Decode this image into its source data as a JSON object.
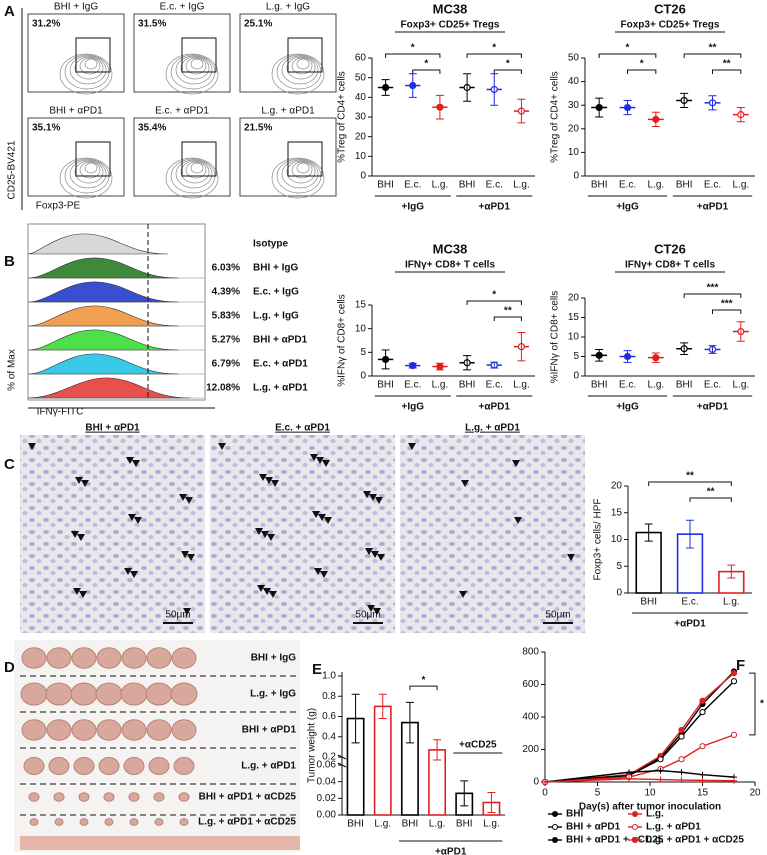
{
  "panel_letters": [
    "A",
    "B",
    "C",
    "D",
    "E",
    "F"
  ],
  "flow": {
    "plots": [
      {
        "label": "BHI + IgG",
        "percent": "31.2%"
      },
      {
        "label": "E.c. + IgG",
        "percent": "31.5%"
      },
      {
        "label": "L.g. + IgG",
        "percent": "25.1%"
      },
      {
        "label": "BHI + αPD1",
        "percent": "35.1%"
      },
      {
        "label": "E.c. + αPD1",
        "percent": "35.4%"
      },
      {
        "label": "L.g. + αPD1",
        "percent": "21.5%"
      }
    ],
    "y_axis": "CD25-BV421",
    "x_axis": "Foxp3-PE"
  },
  "histogram": {
    "isotype": "Isotype",
    "rows": [
      {
        "label": "BHI + IgG",
        "percent": "6.03%",
        "color": "#3f8a3a"
      },
      {
        "label": "E.c. + IgG",
        "percent": "4.39%",
        "color": "#3a4fd0"
      },
      {
        "label": "L.g. + IgG",
        "percent": "5.83%",
        "color": "#f0a050"
      },
      {
        "label": "BHI + αPD1",
        "percent": "5.27%",
        "color": "#4ee04a"
      },
      {
        "label": "E.c. + αPD1",
        "percent": "6.79%",
        "color": "#38c8e8"
      },
      {
        "label": "L.g. + αPD1",
        "percent": "12.08%",
        "color": "#e85050"
      }
    ],
    "y_axis": "% of Max",
    "x_axis": "IFNγ-FITC"
  },
  "ihc": {
    "images": [
      {
        "label": "BHI + αPD1",
        "scale": "50μm"
      },
      {
        "label": "E.c. + αPD1",
        "scale": "50μm"
      },
      {
        "label": "L.g. + αPD1",
        "scale": "50μm"
      }
    ]
  },
  "photo": {
    "rows": [
      "BHI + IgG",
      "L.g. + IgG",
      "BHI + αPD1",
      "L.g. + αPD1",
      "BHI + αPD1 + αCD25",
      "L.g. + αPD1 + αCD25"
    ]
  },
  "chart_data": [
    {
      "type": "dot",
      "title": "MC38",
      "subtitle": "Foxp3+ CD25+ Tregs",
      "ylabel": "%Treg of CD4+ cells",
      "categories": [
        "BHI",
        "E.c.",
        "L.g.",
        "BHI",
        "E.c.",
        "L.g."
      ],
      "values": [
        45,
        46,
        35,
        45,
        44,
        33
      ],
      "errors": [
        4,
        6,
        6,
        7,
        8,
        6
      ],
      "colors": [
        "#000000",
        "#1f2fe0",
        "#e02020",
        "#000000",
        "#1f2fe0",
        "#e02020"
      ],
      "open": [
        false,
        false,
        false,
        true,
        true,
        true
      ],
      "groups": [
        "+IgG",
        "+αPD1"
      ],
      "significance": [
        "*",
        "*",
        "*",
        "*"
      ],
      "ylim": [
        0,
        60
      ],
      "yticks": [
        0,
        10,
        20,
        30,
        40,
        50,
        60
      ]
    },
    {
      "type": "dot",
      "title": "CT26",
      "subtitle": "Foxp3+ CD25+ Tregs",
      "ylabel": "%Treg of CD4+ cells",
      "categories": [
        "BHI",
        "E.c.",
        "L.g.",
        "BHI",
        "E.c.",
        "L.g."
      ],
      "values": [
        29,
        29,
        24,
        32,
        31,
        26
      ],
      "errors": [
        4,
        3,
        3,
        3,
        3,
        3
      ],
      "colors": [
        "#000000",
        "#1f2fe0",
        "#e02020",
        "#000000",
        "#1f2fe0",
        "#e02020"
      ],
      "open": [
        false,
        false,
        false,
        true,
        true,
        true
      ],
      "groups": [
        "+IgG",
        "+αPD1"
      ],
      "significance": [
        "*",
        "*",
        "**",
        "**"
      ],
      "ylim": [
        0,
        50
      ],
      "yticks": [
        0,
        10,
        20,
        30,
        40,
        50
      ]
    },
    {
      "type": "dot",
      "title": "MC38",
      "subtitle": "IFNγ+ CD8+ T cells",
      "ylabel": "%IFNγ of CD8+ cells",
      "categories": [
        "BHI",
        "E.c.",
        "L.g.",
        "BHI",
        "E.c.",
        "L.g."
      ],
      "values": [
        3.5,
        2.2,
        2,
        2.8,
        2.3,
        6.2
      ],
      "errors": [
        2,
        0.5,
        0.7,
        1.5,
        0.6,
        3
      ],
      "colors": [
        "#000000",
        "#1f2fe0",
        "#e02020",
        "#000000",
        "#1f2fe0",
        "#e02020"
      ],
      "open": [
        false,
        false,
        false,
        true,
        true,
        true
      ],
      "groups": [
        "+IgG",
        "+αPD1"
      ],
      "significance": [
        "*",
        "**"
      ],
      "ylim": [
        0,
        15
      ],
      "yticks": [
        0,
        5,
        10,
        15
      ]
    },
    {
      "type": "dot",
      "title": "CT26",
      "subtitle": "IFNγ+ CD8+ T cells",
      "ylabel": "%IFNγ of CD8+ cells",
      "categories": [
        "BHI",
        "E.c.",
        "L.g.",
        "BHI",
        "E.c.",
        "L.g."
      ],
      "values": [
        5.3,
        5,
        4.7,
        7,
        6.8,
        11.4
      ],
      "errors": [
        1.5,
        1.5,
        1.2,
        1.5,
        1,
        2.5
      ],
      "colors": [
        "#000000",
        "#1f2fe0",
        "#e02020",
        "#000000",
        "#1f2fe0",
        "#e02020"
      ],
      "open": [
        false,
        false,
        false,
        true,
        true,
        true
      ],
      "groups": [
        "+IgG",
        "+αPD1"
      ],
      "significance": [
        "***",
        "***"
      ],
      "ylim": [
        0,
        20
      ],
      "yticks": [
        0,
        5,
        10,
        15,
        20
      ]
    },
    {
      "type": "bar",
      "ylabel": "Foxp3+ cells/ HPF",
      "categories": [
        "BHI",
        "E.c.",
        "L.g."
      ],
      "values": [
        11.3,
        11,
        4
      ],
      "errors": [
        1.6,
        2.6,
        1.2
      ],
      "colors": [
        "#000000",
        "#1f2fe0",
        "#e02020"
      ],
      "groups": [
        "+αPD1"
      ],
      "significance": [
        "**",
        "**"
      ],
      "ylim": [
        0,
        20
      ],
      "yticks": [
        0,
        5,
        10,
        15,
        20
      ]
    },
    {
      "type": "bar",
      "ylabel": "Tumor weight (g)",
      "categories": [
        "BHI",
        "L.g.",
        "BHI",
        "L.g.",
        "BHI",
        "L.g."
      ],
      "values": [
        0.58,
        0.7,
        0.54,
        0.27,
        0.026,
        0.015
      ],
      "errors": [
        0.24,
        0.12,
        0.2,
        0.1,
        0.015,
        0.012
      ],
      "colors": [
        "#000000",
        "#e02020",
        "#000000",
        "#e02020",
        "#000000",
        "#e02020"
      ],
      "groups": [
        "+αCD25",
        "+αPD1"
      ],
      "significance": [
        "*"
      ],
      "ylim_upper": [
        0.2,
        1.0
      ],
      "ylim_lower": [
        0,
        0.06
      ],
      "yticks": [
        {
          "value": 0,
          "label": "0.00"
        },
        0.02,
        0.04,
        0.06,
        0.2,
        0.4,
        0.6,
        0.8,
        {
          "value": 1,
          "label": "1.0"
        }
      ]
    },
    {
      "type": "line",
      "xlabel": "Day(s) after tumor inoculation",
      "x": [
        0,
        8,
        11,
        13,
        15,
        18
      ],
      "series": [
        {
          "name": "BHI",
          "color": "#000000",
          "marker": "filled",
          "values": [
            0,
            40,
            150,
            300,
            480,
            680
          ]
        },
        {
          "name": "L.g.",
          "color": "#e02020",
          "marker": "filled",
          "values": [
            0,
            45,
            160,
            320,
            500,
            670
          ]
        },
        {
          "name": "BHI + αPD1",
          "color": "#000000",
          "marker": "open",
          "values": [
            0,
            40,
            140,
            280,
            430,
            620
          ]
        },
        {
          "name": "L.g. + αPD1",
          "color": "#e02020",
          "marker": "open",
          "values": [
            0,
            30,
            80,
            140,
            220,
            290
          ]
        },
        {
          "name": "BHI + αPD1 + αCD25",
          "color": "#000000",
          "marker": "cross",
          "values": [
            0,
            60,
            70,
            60,
            45,
            30
          ]
        },
        {
          "name": "L.g. + αPD1 + αCD25",
          "color": "#e02020",
          "marker": "cross",
          "values": [
            0,
            20,
            15,
            12,
            10,
            8
          ]
        }
      ],
      "significance": [
        "*"
      ],
      "xlim": [
        0,
        20
      ],
      "xticks": [
        0,
        5,
        10,
        15,
        20
      ],
      "ylim": [
        0,
        800
      ],
      "yticks": [
        0,
        200,
        400,
        600,
        800
      ]
    }
  ]
}
